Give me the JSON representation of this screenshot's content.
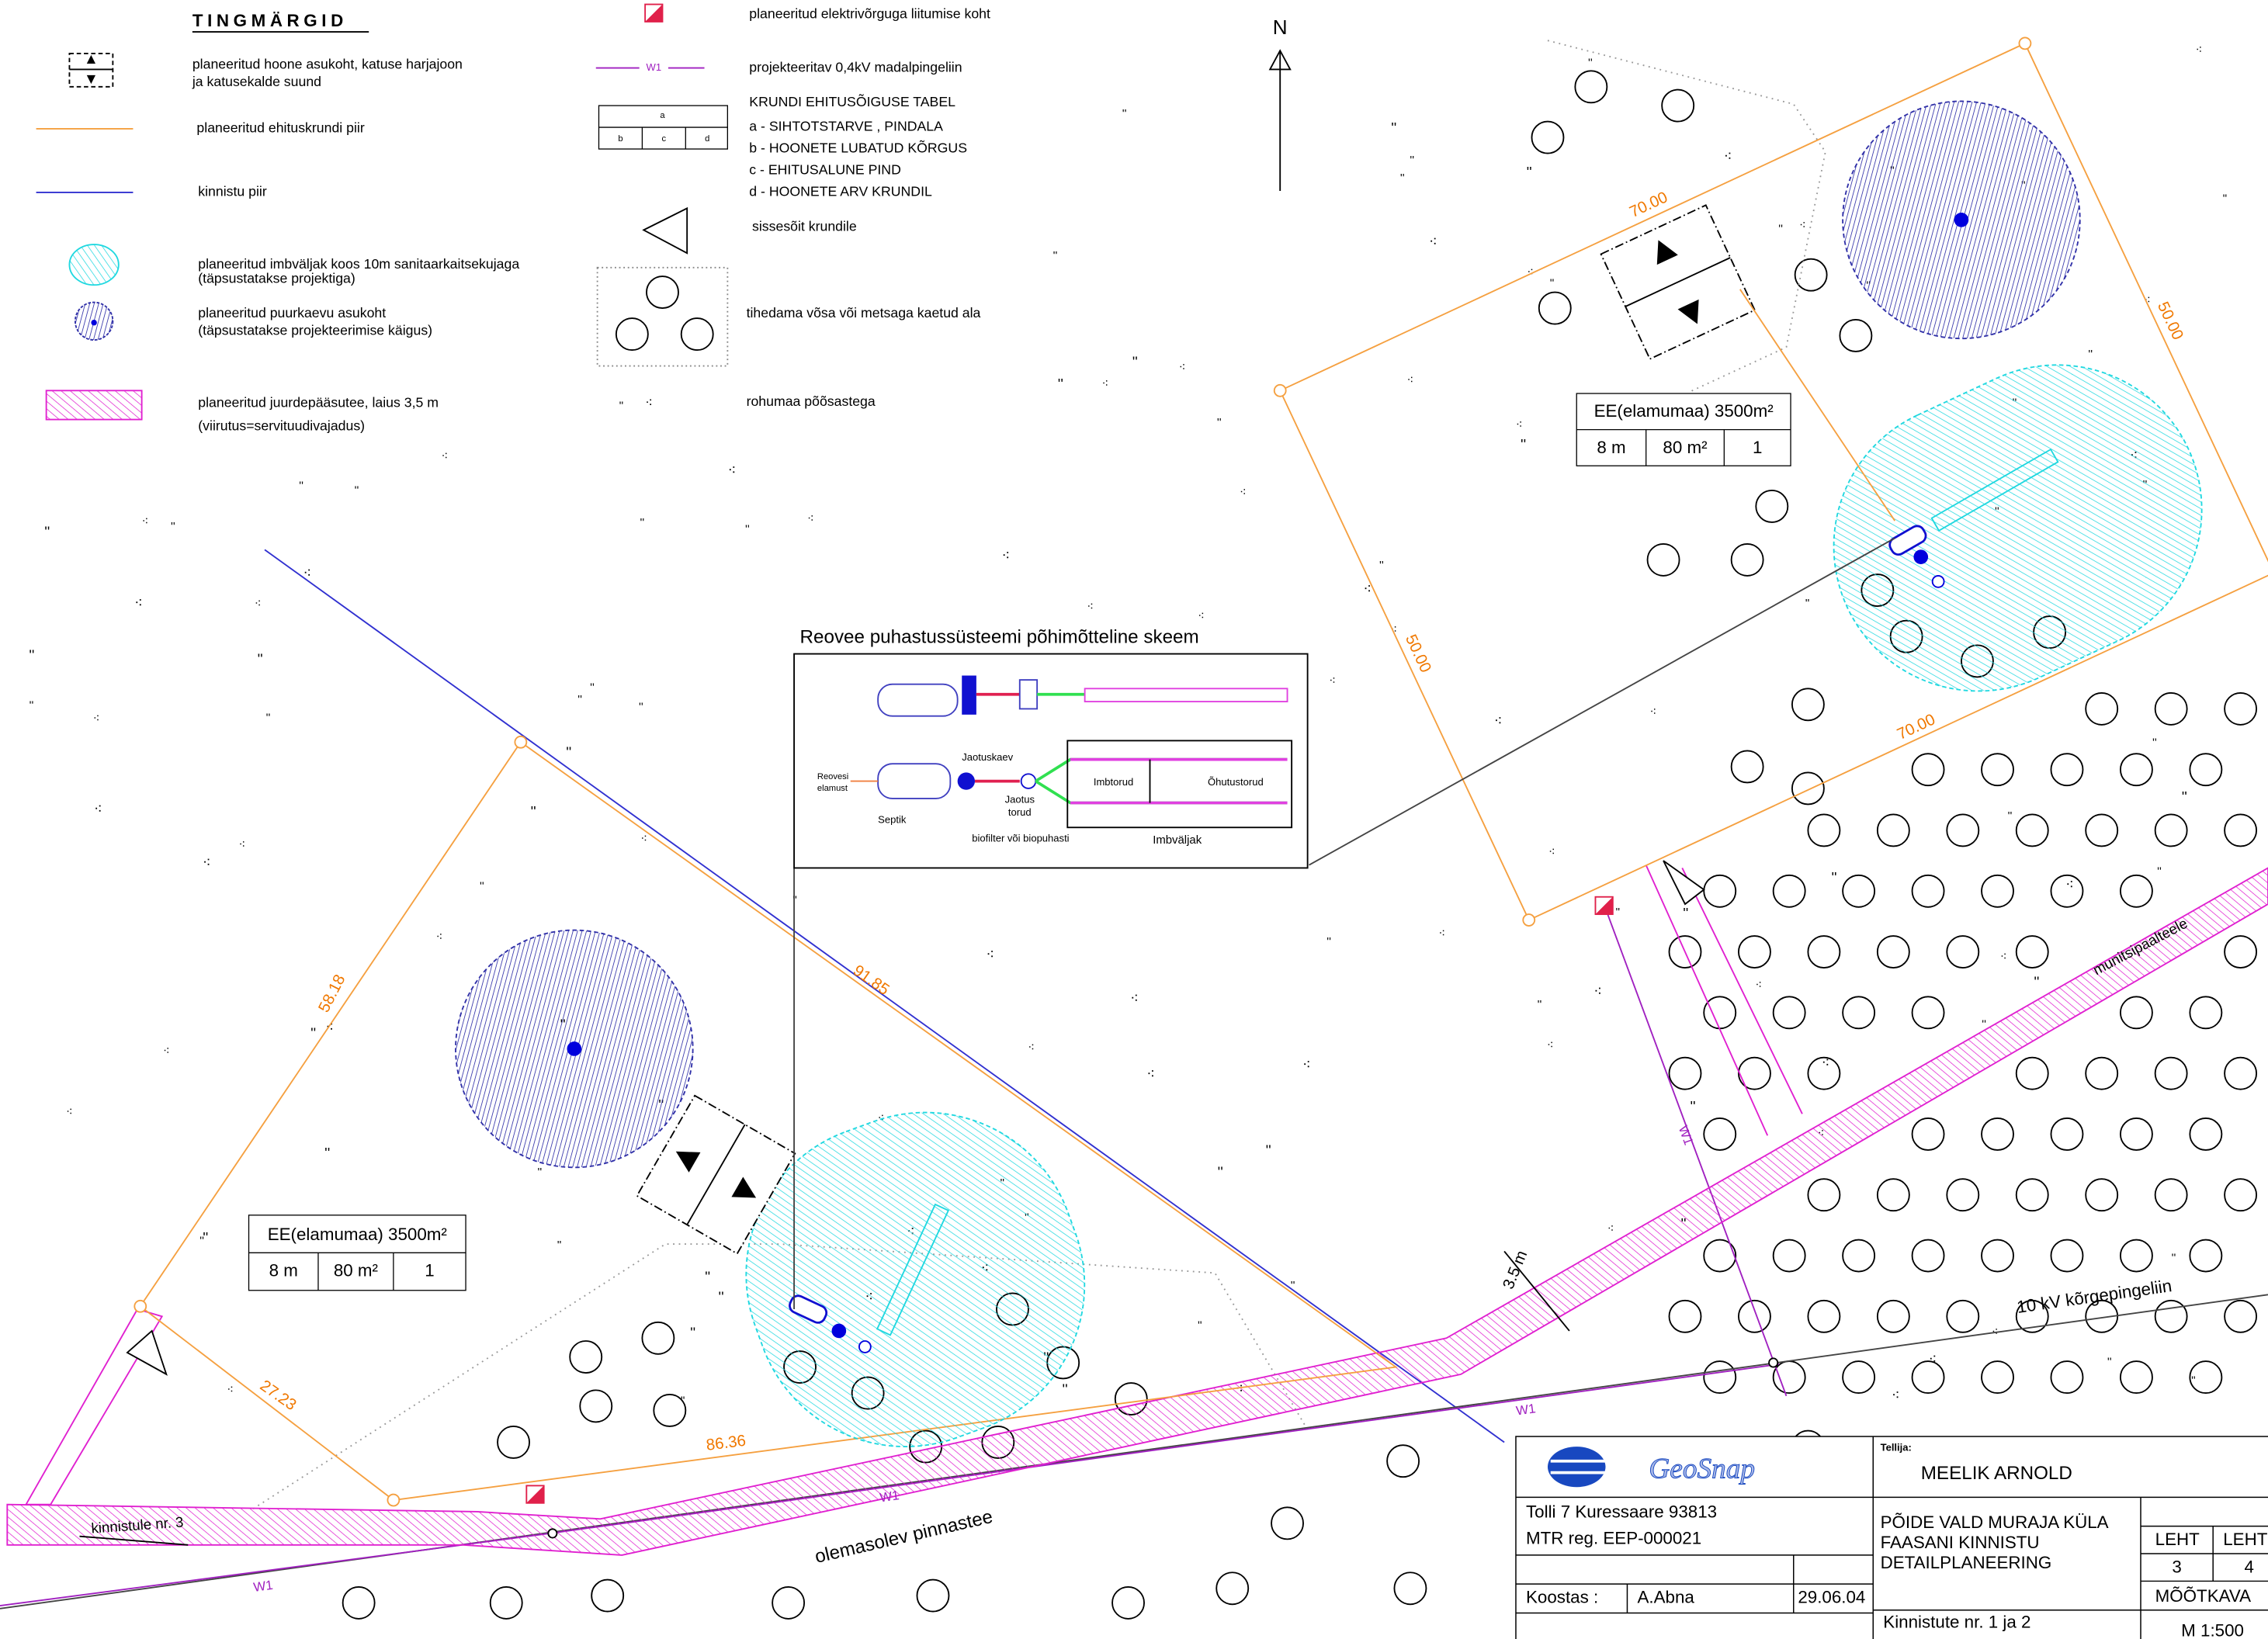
{
  "legend": {
    "title": "TINGMÄRGID",
    "building": [
      "planeeritud hoone asukoht, katuse harjajoon",
      "ja katusekalde suund"
    ],
    "plot_boundary": "planeeritud ehituskrundi piir",
    "property_boundary": "kinnistu piir",
    "infiltration": [
      "planeeritud imbväljak koos 10m sanitaarkaitsekujaga",
      "(täpsustatakse projektiga)"
    ],
    "well": [
      "planeeritud puurkaevu asukoht",
      "(täpsustatakse projekteerimise käigus)"
    ],
    "access_road": [
      "planeeritud juurdepääsutee, laius 3,5 m",
      "(viirutus=servituudivajadus)"
    ],
    "power_connection": "planeeritud elektrivõrguga liitumise koht",
    "low_voltage": {
      "symbol": "W1",
      "text": "projekteeritav 0,4kV madalpingeliin"
    },
    "table": {
      "cells": [
        "a",
        "b",
        "c",
        "d"
      ],
      "lines": [
        "KRUNDI EHITUSÕIGUSE TABEL",
        "a - SIHTOTSTARVE , PINDALA",
        "b - HOONETE LUBATUD KÕRGUS",
        "c - EHITUSALUNE PIND",
        "d - HOONETE ARV KRUNDIL"
      ]
    },
    "entrance": "sissesõit krundile",
    "forest": "tihedama võsa või metsaga kaetud ala",
    "grass": "rohumaa põõsastega"
  },
  "map": {
    "north": "N",
    "plots": [
      {
        "label": "EE(elamumaa) 3500m²",
        "cells": [
          "8 m",
          "80 m²",
          "1"
        ],
        "dims": [
          "70.00",
          "50.00",
          "50.00",
          "70.00"
        ]
      },
      {
        "label": "EE(elamumaa) 3500m²",
        "cells": [
          "8 m",
          "80 m²",
          "1"
        ],
        "dims": [
          "58.18",
          "91.85",
          "27.23",
          "86.36"
        ]
      }
    ],
    "w1_labels": [
      "W1",
      "W1",
      "W1",
      "W1"
    ],
    "road": "olemasolev pinnastee",
    "to_plot3": "kinnistule nr. 3",
    "to_municipal": "munitsipaalteele",
    "high_voltage": "10 kV kõrgepingeliin",
    "road_width": "3.5 m"
  },
  "schematic": {
    "title": "Reovee puhastussüsteemi põhimõtteline skeem",
    "inflow": [
      "Reovesi",
      "elamust"
    ],
    "distribution_well": "Jaotuskaev",
    "distribution_pipes": [
      "Jaotus",
      "torud"
    ],
    "septic": "Septik",
    "biofilter": "biofilter või biopuhasti",
    "infiltration_pipes": "Imbtorud",
    "aeration_pipes": "Õhutustorud",
    "field": "Imbväljak"
  },
  "title_block": {
    "company": "GeoSnap",
    "address": "Tolli 7  Kuressaare 93813",
    "registry": "MTR reg.  EEP-000021",
    "author_label": "Koostas :",
    "author": "A.Abna",
    "date": "29.06.04",
    "client_label": "Tellija:",
    "client": "MEELIK ARNOLD",
    "project": [
      "PÕIDE VALD MURAJA KÜLA",
      "FAASANI KINNISTU",
      "DETAILPLANEERING"
    ],
    "sheet_label": [
      "LEHT",
      "LEHT"
    ],
    "sheet": [
      "3",
      "4"
    ],
    "scale_label": "MÕÕTKAVA",
    "scale": "M 1:500",
    "parcels": "Kinnistute nr. 1 ja 2"
  }
}
